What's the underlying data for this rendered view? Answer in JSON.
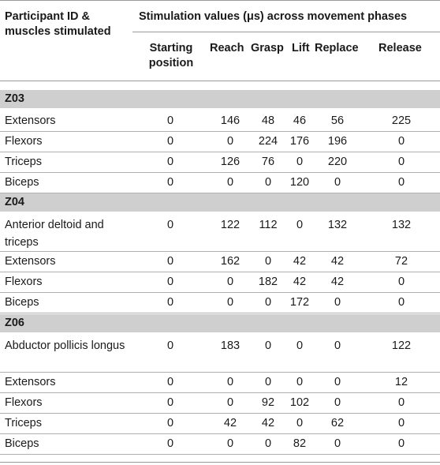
{
  "header": {
    "participant_label": "Participant ID & muscles stimulated",
    "stim_label": "Stimulation values (μs) across movement phases",
    "phases": [
      "Starting position",
      "Reach",
      "Grasp",
      "Lift",
      "Replace",
      "Release"
    ]
  },
  "groups": [
    {
      "id": "Z03",
      "rows": [
        {
          "muscle": "Extensors",
          "values": [
            "0",
            "146",
            "48",
            "46",
            "56",
            "225"
          ]
        },
        {
          "muscle": "Flexors",
          "values": [
            "0",
            "0",
            "224",
            "176",
            "196",
            "0"
          ]
        },
        {
          "muscle": "Triceps",
          "values": [
            "0",
            "126",
            "76",
            "0",
            "220",
            "0"
          ]
        },
        {
          "muscle": "Biceps",
          "values": [
            "0",
            "0",
            "0",
            "120",
            "0",
            "0"
          ]
        }
      ]
    },
    {
      "id": "Z04",
      "rows": [
        {
          "muscle": "Anterior deltoid and triceps",
          "values": [
            "0",
            "122",
            "112",
            "0",
            "132",
            "132"
          ]
        },
        {
          "muscle": "Extensors",
          "values": [
            "0",
            "162",
            "0",
            "42",
            "42",
            "72"
          ]
        },
        {
          "muscle": "Flexors",
          "values": [
            "0",
            "0",
            "182",
            "42",
            "42",
            "0"
          ]
        },
        {
          "muscle": "Biceps",
          "values": [
            "0",
            "0",
            "0",
            "172",
            "0",
            "0"
          ]
        }
      ]
    },
    {
      "id": "Z06",
      "rows": [
        {
          "muscle": "Abductor pollicis longus",
          "values": [
            "0",
            "183",
            "0",
            "0",
            "0",
            "122"
          ]
        },
        {
          "muscle": "Extensors",
          "values": [
            "0",
            "0",
            "0",
            "0",
            "0",
            "12"
          ]
        },
        {
          "muscle": "Flexors",
          "values": [
            "0",
            "0",
            "92",
            "102",
            "0",
            "0"
          ]
        },
        {
          "muscle": "Triceps",
          "values": [
            "0",
            "42",
            "42",
            "0",
            "62",
            "0"
          ]
        },
        {
          "muscle": "Biceps",
          "values": [
            "0",
            "0",
            "0",
            "82",
            "0",
            "0"
          ]
        }
      ]
    }
  ]
}
